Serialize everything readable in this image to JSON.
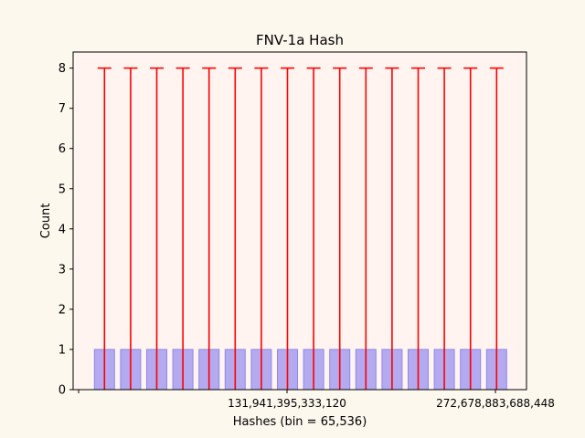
{
  "chart_data": {
    "type": "bar",
    "title": "FNV-1a Hash",
    "xlabel": "Hashes (bin = 65,536)",
    "ylabel": "Count",
    "ylim": [
      0,
      8.4
    ],
    "yticks": [
      0,
      1,
      2,
      3,
      4,
      5,
      6,
      7,
      8
    ],
    "xtick_labels": [
      "131,941,395,333,120",
      "272,678,883,688,448"
    ],
    "grid": false,
    "colors": {
      "page_background": "#fdf8ee",
      "plot_background": "#fff4f0",
      "bar_fill": "#b3aaf0",
      "bar_edge": "#8f88e8",
      "error_bar": "#ff0000"
    },
    "series": [
      {
        "values": [
          1,
          1,
          1,
          1,
          1,
          1,
          1,
          1,
          1,
          1,
          1,
          1,
          1,
          1,
          1,
          1
        ],
        "error_upper": [
          8,
          8,
          8,
          8,
          8,
          8,
          8,
          8,
          8,
          8,
          8,
          8,
          8,
          8,
          8,
          8
        ]
      }
    ]
  }
}
